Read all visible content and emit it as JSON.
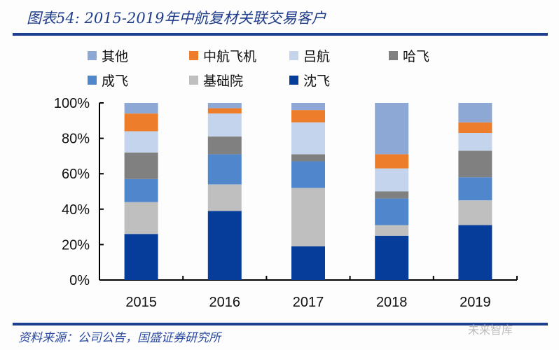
{
  "title": "图表54: 2015-2019年中航复材关联交易客户",
  "source": "资料来源：公司公告，国盛证券研究所",
  "watermark": "未来智库",
  "chart_data": {
    "type": "bar",
    "stacked": true,
    "categories": [
      "2015",
      "2016",
      "2017",
      "2018",
      "2019"
    ],
    "ylim": [
      0,
      100
    ],
    "yticks": [
      "0%",
      "20%",
      "40%",
      "60%",
      "80%",
      "100%"
    ],
    "legend_position": "top",
    "grid": false,
    "series": [
      {
        "name": "沈飞",
        "color": "#073d9a",
        "values": [
          26,
          39,
          19,
          25,
          31
        ]
      },
      {
        "name": "基础院",
        "color": "#bfbfbf",
        "values": [
          18,
          15,
          33,
          6,
          14
        ]
      },
      {
        "name": "成飞",
        "color": "#4f86cc",
        "values": [
          13,
          17,
          15,
          15,
          13
        ]
      },
      {
        "name": "哈飞",
        "color": "#808080",
        "values": [
          15,
          10,
          4,
          4,
          15
        ]
      },
      {
        "name": "吕航",
        "color": "#c3d4ec",
        "values": [
          12,
          13,
          18,
          13,
          10
        ]
      },
      {
        "name": "中航飞机",
        "color": "#ee7d2b",
        "values": [
          10,
          3,
          7,
          8,
          6
        ]
      },
      {
        "name": "其他",
        "color": "#8ea8d6",
        "values": [
          6,
          3,
          4,
          29,
          11
        ]
      }
    ],
    "legend_order": [
      "其他",
      "中航飞机",
      "吕航",
      "哈飞",
      "成飞",
      "基础院",
      "沈飞"
    ]
  }
}
